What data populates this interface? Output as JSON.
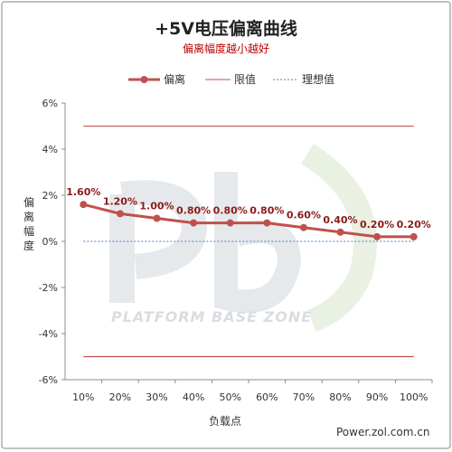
{
  "chart_data": {
    "type": "line",
    "title": "+5V电压偏离曲线",
    "subtitle": "偏离幅度越小越好",
    "xlabel": "负载点",
    "ylabel": "偏离幅度",
    "categories": [
      "10%",
      "20%",
      "30%",
      "40%",
      "50%",
      "60%",
      "70%",
      "80%",
      "90%",
      "100%"
    ],
    "series": [
      {
        "name": "偏离",
        "values": [
          1.6,
          1.2,
          1.0,
          0.8,
          0.8,
          0.8,
          0.6,
          0.4,
          0.2,
          0.2
        ],
        "labels": [
          "1.60%",
          "1.20%",
          "1.00%",
          "0.80%",
          "0.80%",
          "0.80%",
          "0.60%",
          "0.40%",
          "0.20%",
          "0.20%"
        ]
      },
      {
        "name": "限值",
        "upper": 5,
        "lower": -5
      },
      {
        "name": "理想值",
        "value": 0
      }
    ],
    "ylim": [
      -6,
      6
    ],
    "yticks": [
      6,
      4,
      2,
      0,
      -2,
      -4,
      -6
    ],
    "ytick_labels": [
      "6%",
      "4%",
      "2%",
      "0%",
      "-2%",
      "-4%",
      "-6%"
    ],
    "grid": false,
    "legend": "top",
    "colors": {
      "deviation": "#c0504d",
      "limit": "#c0504d",
      "ideal": "#4f81bd",
      "frame": "#8c8c8c"
    }
  },
  "watermark": "PLATFORM BASE ZONE",
  "credit": "Power.zol.com.cn"
}
